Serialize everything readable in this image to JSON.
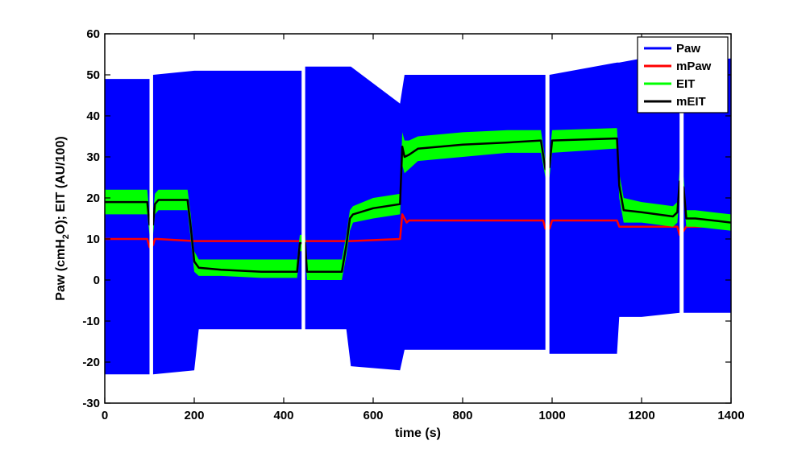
{
  "chart_data": {
    "type": "line",
    "xlabel": "time (s)",
    "ylabel_parts": [
      "Paw (cmH",
      "2",
      "O); EIT (AU/100)"
    ],
    "xlim": [
      0,
      1400
    ],
    "ylim": [
      -30,
      60
    ],
    "xticks": [
      0,
      200,
      400,
      600,
      800,
      1000,
      1200,
      1400
    ],
    "yticks": [
      -30,
      -20,
      -10,
      0,
      10,
      20,
      30,
      40,
      50,
      60
    ],
    "grid": false,
    "legend_position": "top-right",
    "gaps": [
      [
        100,
        108
      ],
      [
        440,
        448
      ],
      [
        985,
        994
      ],
      [
        1285,
        1294
      ]
    ],
    "series": [
      {
        "name": "Paw",
        "color": "#0000ff",
        "style": "band",
        "x": [
          0,
          100,
          108,
          200,
          210,
          440,
          448,
          540,
          550,
          660,
          670,
          700,
          985,
          994,
          1145,
          1150,
          1200,
          1285,
          1294,
          1400
        ],
        "upper": [
          49,
          49,
          50,
          51,
          51,
          51,
          52,
          52,
          52,
          43,
          50,
          50,
          50,
          50,
          53,
          53,
          54,
          55,
          53,
          54
        ],
        "lower": [
          -23,
          -23,
          -23,
          -22,
          -12,
          -12,
          -12,
          -12,
          -21,
          -22,
          -17,
          -17,
          -17,
          -18,
          -18,
          -9,
          -9,
          -8,
          -8,
          -8
        ]
      },
      {
        "name": "mPaw",
        "color": "#ff0000",
        "style": "line",
        "x": [
          0,
          95,
          100,
          108,
          112,
          118,
          200,
          440,
          448,
          550,
          660,
          665,
          675,
          680,
          980,
          985,
          994,
          1000,
          1145,
          1150,
          1280,
          1285,
          1294,
          1300,
          1400
        ],
        "y": [
          10,
          10,
          8,
          8.5,
          10,
          10,
          9.5,
          9.5,
          9.5,
          9.5,
          10,
          16,
          14,
          14.5,
          14.5,
          12.5,
          12.5,
          14.5,
          14.5,
          13,
          13,
          11,
          12,
          13,
          13
        ]
      },
      {
        "name": "EIT",
        "color": "#00ff00",
        "style": "band",
        "x": [
          0,
          90,
          95,
          100,
          108,
          112,
          120,
          185,
          192,
          200,
          210,
          260,
          350,
          430,
          436,
          440,
          448,
          452,
          460,
          530,
          540,
          548,
          555,
          600,
          660,
          665,
          670,
          680,
          700,
          800,
          900,
          975,
          985,
          994,
          1000,
          1140,
          1145,
          1150,
          1160,
          1200,
          1270,
          1280,
          1285,
          1294,
          1300,
          1320,
          1400
        ],
        "upper": [
          22,
          22,
          22,
          16,
          16,
          21,
          22,
          22,
          16,
          7,
          5,
          5,
          5,
          5,
          11,
          11,
          11,
          5,
          5,
          5,
          11,
          17,
          18,
          20,
          21,
          36,
          34,
          34,
          35,
          36,
          36.5,
          36.5,
          29,
          30,
          36.5,
          37,
          37,
          26,
          20,
          19,
          18,
          19,
          27,
          25,
          17,
          17,
          16
        ],
        "lower": [
          16,
          16,
          16,
          11,
          11,
          16,
          17,
          17,
          10,
          2,
          1,
          1,
          0.5,
          0.5,
          7,
          7,
          7,
          0,
          0,
          0,
          6,
          12,
          14,
          15,
          16,
          28,
          26,
          27,
          29,
          30,
          31,
          31,
          25,
          25,
          31,
          32,
          32,
          20,
          14,
          14,
          13,
          14,
          21,
          20,
          13,
          13,
          12
        ]
      },
      {
        "name": "mEIT",
        "color": "#000000",
        "style": "line",
        "x": [
          0,
          90,
          95,
          100,
          108,
          112,
          120,
          185,
          192,
          200,
          210,
          260,
          350,
          430,
          436,
          440,
          448,
          452,
          460,
          530,
          540,
          548,
          555,
          600,
          660,
          665,
          670,
          680,
          700,
          800,
          900,
          975,
          985,
          994,
          1000,
          1140,
          1145,
          1150,
          1160,
          1200,
          1270,
          1280,
          1285,
          1294,
          1300,
          1320,
          1400
        ],
        "y": [
          19,
          19,
          19,
          13.5,
          13.5,
          18.5,
          19.5,
          19.5,
          13,
          4.5,
          3,
          2.5,
          2,
          2,
          9,
          9,
          9,
          2,
          2,
          2,
          8.5,
          15,
          16,
          17.5,
          18.5,
          32.5,
          30,
          30.5,
          32,
          33,
          33.5,
          34,
          27,
          27.5,
          34,
          34.5,
          34.5,
          23,
          17,
          16.5,
          15.5,
          16.5,
          24,
          22.5,
          15,
          15,
          14
        ]
      }
    ]
  }
}
